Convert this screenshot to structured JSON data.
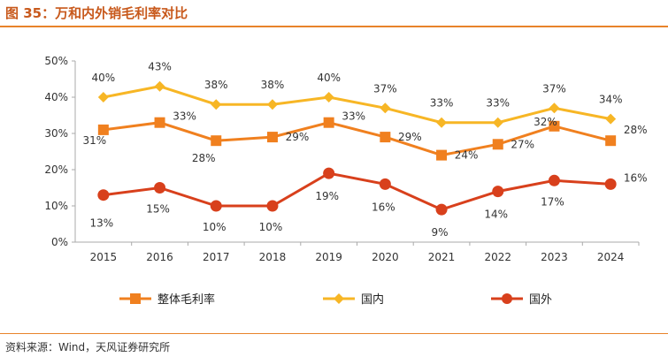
{
  "title": "图 35：万和内外销毛利率对比",
  "source": "资料来源：Wind，天风证券研究所",
  "chart_data": {
    "type": "line",
    "title": "",
    "categories": [
      "2015",
      "2016",
      "2017",
      "2018",
      "2019",
      "2020",
      "2021",
      "2022",
      "2023",
      "2024"
    ],
    "ylim": [
      0,
      50
    ],
    "yticks": [
      "0%",
      "10%",
      "20%",
      "30%",
      "40%",
      "50%"
    ],
    "grid": false,
    "legend": "bottom",
    "series": [
      {
        "name": "整体毛利率",
        "color": "#f0801f",
        "marker": "square",
        "values": [
          31,
          33,
          28,
          29,
          33,
          29,
          24,
          27,
          32,
          28
        ]
      },
      {
        "name": "国内",
        "color": "#f7b625",
        "marker": "diamond",
        "values": [
          40,
          43,
          38,
          38,
          40,
          37,
          33,
          33,
          37,
          34
        ]
      },
      {
        "name": "国外",
        "color": "#d8401c",
        "marker": "circle",
        "values": [
          13,
          15,
          10,
          10,
          19,
          16,
          9,
          14,
          17,
          16
        ]
      }
    ]
  }
}
